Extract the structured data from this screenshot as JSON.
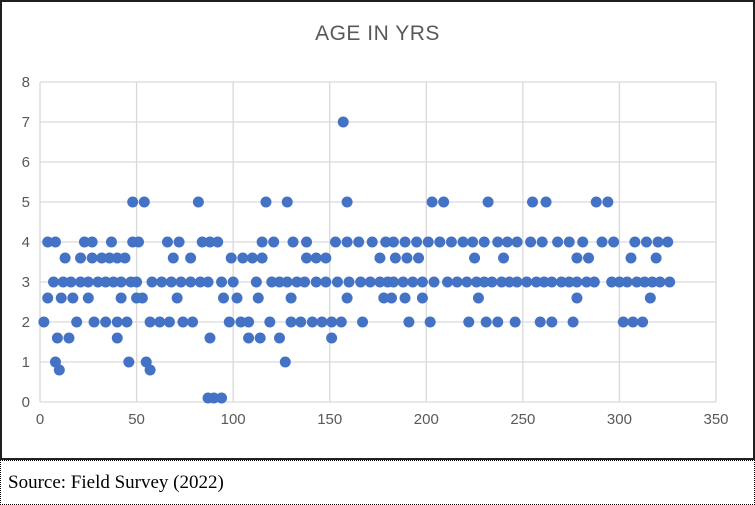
{
  "chart_data": {
    "type": "scatter",
    "title": "AGE IN YRS",
    "xlabel": "",
    "ylabel": "",
    "xlim": [
      0,
      350
    ],
    "ylim": [
      0,
      8
    ],
    "x_ticks": [
      0,
      50,
      100,
      150,
      200,
      250,
      300,
      350
    ],
    "y_ticks": [
      0,
      1,
      2,
      3,
      4,
      5,
      6,
      7,
      8
    ],
    "grid": true,
    "legend_position": "none",
    "marker_color": "#4472C4",
    "gridline_color": "#D9D9D9",
    "axis_label_color": "#595959",
    "rows": [
      {
        "y": 7,
        "xs": [
          157
        ]
      },
      {
        "y": 5,
        "xs": [
          48,
          54,
          82,
          117,
          128,
          159,
          203,
          209,
          232,
          255,
          262,
          288,
          294
        ]
      },
      {
        "y": 4,
        "xs": [
          4,
          8,
          23,
          27,
          37,
          48,
          51,
          66,
          72,
          84,
          88,
          92,
          115,
          121,
          131,
          138,
          153,
          159,
          165,
          172,
          179,
          183,
          189,
          195,
          201,
          207,
          213,
          219,
          224,
          230,
          237,
          242,
          247,
          254,
          260,
          268,
          274,
          281,
          291,
          297,
          308,
          314,
          320,
          325
        ]
      },
      {
        "y": 3.6,
        "xs": [
          13,
          21,
          27,
          32,
          36,
          40,
          44,
          69,
          78,
          99,
          105,
          110,
          115,
          138,
          143,
          148,
          176,
          184,
          190,
          196,
          225,
          240,
          278,
          284,
          306,
          319
        ]
      },
      {
        "y": 3,
        "xs": [
          7,
          12,
          16,
          21,
          25,
          30,
          34,
          38,
          42,
          47,
          50,
          58,
          63,
          68,
          73,
          78,
          83,
          87,
          94,
          100,
          112,
          120,
          124,
          128,
          133,
          137,
          143,
          148,
          154,
          160,
          166,
          171,
          176,
          180,
          183,
          188,
          193,
          198,
          204,
          211,
          216,
          221,
          226,
          230,
          234,
          239,
          243,
          247,
          252,
          257,
          261,
          265,
          270,
          274,
          278,
          283,
          287,
          296,
          300,
          304,
          309,
          313,
          317,
          321,
          326
        ]
      },
      {
        "y": 2.6,
        "xs": [
          4,
          11,
          17,
          25,
          42,
          50,
          53,
          71,
          95,
          102,
          113,
          130,
          159,
          178,
          182,
          189,
          198,
          227,
          278,
          316
        ]
      },
      {
        "y": 2,
        "xs": [
          2,
          19,
          28,
          34,
          40,
          45,
          57,
          62,
          67,
          74,
          79,
          98,
          104,
          108,
          119,
          130,
          135,
          141,
          146,
          151,
          156,
          167,
          191,
          202,
          222,
          231,
          237,
          246,
          259,
          265,
          276,
          302,
          307,
          312
        ]
      },
      {
        "y": 1.6,
        "xs": [
          9,
          15,
          40,
          88,
          108,
          114,
          124,
          151
        ]
      },
      {
        "y": 1,
        "xs": [
          8,
          46,
          55,
          127
        ]
      },
      {
        "y": 0.8,
        "xs": [
          10,
          57
        ]
      },
      {
        "y": 0.1,
        "xs": [
          87,
          90,
          94
        ]
      }
    ]
  },
  "footer": {
    "source_note": "Source: Field Survey (2022)"
  }
}
